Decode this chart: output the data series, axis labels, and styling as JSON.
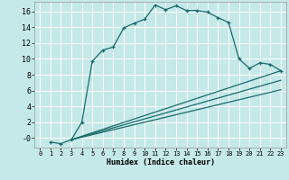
{
  "xlabel": "Humidex (Indice chaleur)",
  "background_color": "#c5e8e8",
  "grid_color": "#ffffff",
  "line_color": "#1a6b6b",
  "xlim": [
    -0.5,
    23.5
  ],
  "ylim": [
    -1.2,
    17.2
  ],
  "yticks": [
    0,
    2,
    4,
    6,
    8,
    10,
    12,
    14,
    16
  ],
  "ytick_labels": [
    "-0",
    "2",
    "4",
    "6",
    "8",
    "10",
    "12",
    "14",
    "16"
  ],
  "xticks": [
    0,
    1,
    2,
    3,
    4,
    5,
    6,
    7,
    8,
    9,
    10,
    11,
    12,
    13,
    14,
    15,
    16,
    17,
    18,
    19,
    20,
    21,
    22,
    23
  ],
  "curve1_x": [
    1,
    2,
    3,
    4,
    5,
    6,
    7,
    8,
    9,
    10,
    11,
    12,
    13,
    14,
    15,
    16,
    17,
    18,
    19,
    20,
    21,
    22,
    23
  ],
  "curve1_y": [
    -0.5,
    -0.7,
    -0.2,
    2.0,
    9.7,
    11.1,
    11.5,
    13.9,
    14.5,
    15.0,
    16.8,
    16.2,
    16.7,
    16.1,
    16.1,
    15.9,
    15.2,
    14.6,
    10.0,
    8.8,
    9.5,
    9.3,
    8.5
  ],
  "line1_x": [
    3,
    23
  ],
  "line1_y": [
    -0.2,
    8.5
  ],
  "line2_x": [
    3,
    23
  ],
  "line2_y": [
    -0.2,
    7.3
  ],
  "line3_x": [
    3,
    23
  ],
  "line3_y": [
    -0.2,
    6.1
  ]
}
